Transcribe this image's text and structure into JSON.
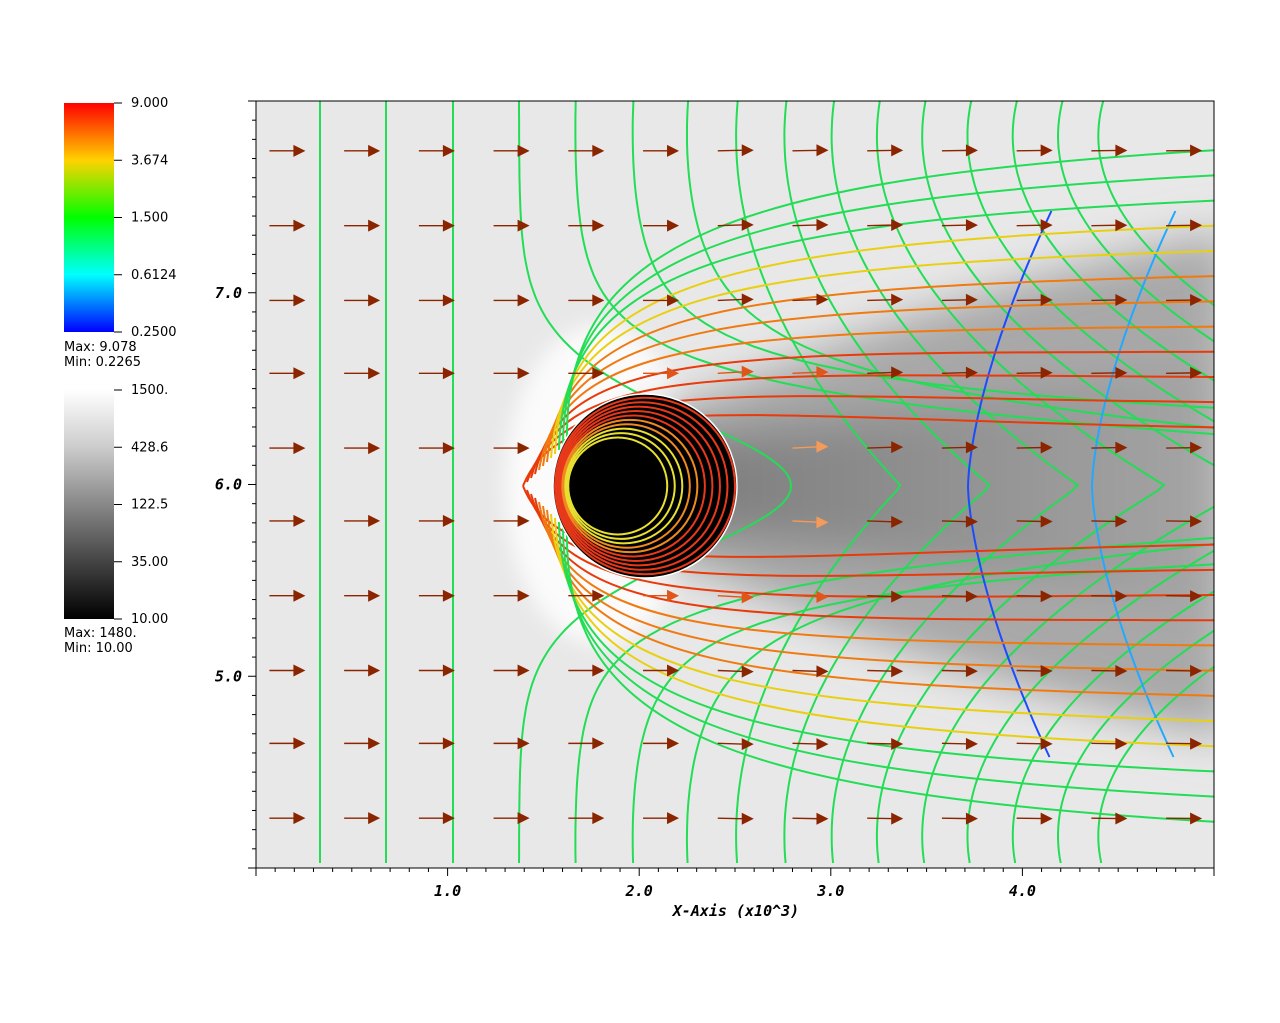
{
  "colorbars": [
    {
      "id": "vector-colorbar",
      "labels": [
        "9.000",
        "3.674",
        "1.500",
        "0.6124",
        "0.2500"
      ],
      "max_text": "Max: 9.078",
      "min_text": "Min: 0.2265",
      "stops": [
        "#ff0000",
        "#ffd200",
        "#00ff00",
        "#00ffff",
        "#0000ff"
      ]
    },
    {
      "id": "pseudocolor-colorbar",
      "labels": [
        "1500.",
        "428.6",
        "122.5",
        "35.00",
        "10.00"
      ],
      "max_text": "Max: 1480.",
      "min_text": "Min: 10.00",
      "stops": [
        "#ffffff",
        "#000000"
      ]
    }
  ],
  "chart_data": {
    "type": "vector-field-with-contours",
    "xlabel": "X-Axis (x10^3)",
    "x_tick_labels": [
      "1.0",
      "2.0",
      "3.0",
      "4.0"
    ],
    "x_ticks": [
      1.0,
      2.0,
      3.0,
      4.0
    ],
    "y_tick_labels": [
      "7.0",
      "6.0",
      "5.0"
    ],
    "y_ticks": [
      7.0,
      6.0,
      5.0
    ],
    "xlim": [
      0.0,
      5.0
    ],
    "ylim": [
      4.0,
      8.0
    ],
    "obstacle": {
      "center": [
        2.25,
        6.0
      ],
      "radius": 0.47
    },
    "vector_color": "#8b2500",
    "contour_color": "#22dd55",
    "vector_rows_y": [
      7.74,
      7.35,
      6.96,
      6.58,
      6.19,
      5.81,
      5.42,
      5.03,
      4.65,
      4.26
    ],
    "vector_cols_x": [
      0.07,
      0.46,
      0.85,
      1.24,
      1.63,
      2.02,
      2.41,
      2.8,
      3.19,
      3.58,
      3.97,
      4.36,
      4.75
    ]
  }
}
